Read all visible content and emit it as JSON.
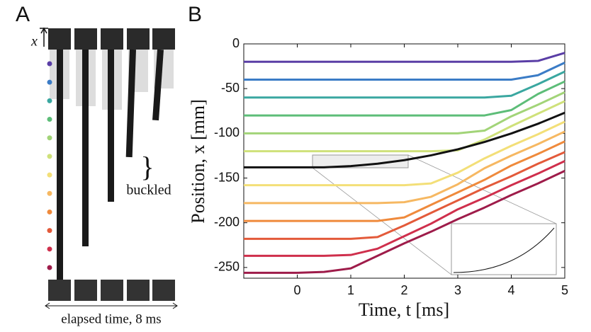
{
  "panel_labels": [
    "A",
    "B"
  ],
  "panel_a": {
    "axis_symbol": "x",
    "annotation": "buckled",
    "caption": "elapsed time, 8 ms"
  },
  "chart_data": {
    "type": "line",
    "x_label": "Time, t [ms]",
    "y_label": "Position, x [mm]",
    "x": [
      -1,
      -0.5,
      0,
      0.5,
      1,
      1.5,
      2,
      2.5,
      3,
      3.5,
      4,
      4.5,
      5
    ],
    "xlim": [
      -1,
      5
    ],
    "xticks": [
      0,
      1,
      2,
      3,
      4,
      5
    ],
    "ylim": [
      -262,
      0
    ],
    "yticks": [
      0,
      -50,
      -100,
      -150,
      -200,
      -250
    ],
    "grid": false,
    "series": [
      {
        "color": "#5a3ea6",
        "values": [
          -20,
          -20,
          -20,
          -20,
          -20,
          -20,
          -20,
          -20,
          -20,
          -20,
          -20,
          -19,
          -10
        ]
      },
      {
        "color": "#3b7cc6",
        "values": [
          -40,
          -40,
          -40,
          -40,
          -40,
          -40,
          -40,
          -40,
          -40,
          -40,
          -40,
          -35,
          -21
        ]
      },
      {
        "color": "#3aa7a0",
        "values": [
          -60,
          -60,
          -60,
          -60,
          -60,
          -60,
          -60,
          -60,
          -60,
          -60,
          -58,
          -45,
          -31
        ]
      },
      {
        "color": "#5dbd78",
        "values": [
          -80,
          -80,
          -80,
          -80,
          -80,
          -80,
          -80,
          -80,
          -80,
          -80,
          -74,
          -56,
          -42
        ]
      },
      {
        "color": "#a2d478",
        "values": [
          -100,
          -100,
          -100,
          -100,
          -100,
          -100,
          -100,
          -100,
          -100,
          -97,
          -81,
          -68,
          -54
        ]
      },
      {
        "color": "#cfe17a",
        "values": [
          -120,
          -120,
          -120,
          -120,
          -120,
          -120,
          -120,
          -120,
          -119,
          -107,
          -92,
          -78,
          -64
        ]
      },
      {
        "color": "#111111",
        "values": [
          -138,
          -138,
          -138,
          -138,
          -136.6,
          -134,
          -130,
          -124.6,
          -117.9,
          -109.7,
          -100.2,
          -89.3,
          -77
        ]
      },
      {
        "color": "#f3df78",
        "values": [
          -158,
          -158,
          -158,
          -158,
          -158,
          -158,
          -158,
          -156,
          -144,
          -128,
          -114,
          -101,
          -87
        ]
      },
      {
        "color": "#f6b862",
        "values": [
          -178,
          -178,
          -178,
          -178,
          -178,
          -178,
          -177,
          -171,
          -157,
          -139,
          -125,
          -112,
          -98
        ]
      },
      {
        "color": "#ef8a3c",
        "values": [
          -198,
          -198,
          -198,
          -198,
          -198,
          -198,
          -194,
          -180,
          -166,
          -152,
          -136,
          -123,
          -109
        ]
      },
      {
        "color": "#e35a3a",
        "values": [
          -218,
          -218,
          -218,
          -218,
          -218,
          -216,
          -203,
          -189,
          -175,
          -161,
          -148,
          -134,
          -121
        ]
      },
      {
        "color": "#cf2f4c",
        "values": [
          -237,
          -237,
          -237,
          -237,
          -236,
          -229,
          -215,
          -201,
          -185,
          -172,
          -158,
          -145,
          -131
        ]
      },
      {
        "color": "#9e1c4a",
        "values": [
          -256,
          -256,
          -256,
          -255,
          -251,
          -237,
          -223,
          -210,
          -196,
          -183,
          -169,
          -156,
          -142
        ]
      }
    ]
  }
}
